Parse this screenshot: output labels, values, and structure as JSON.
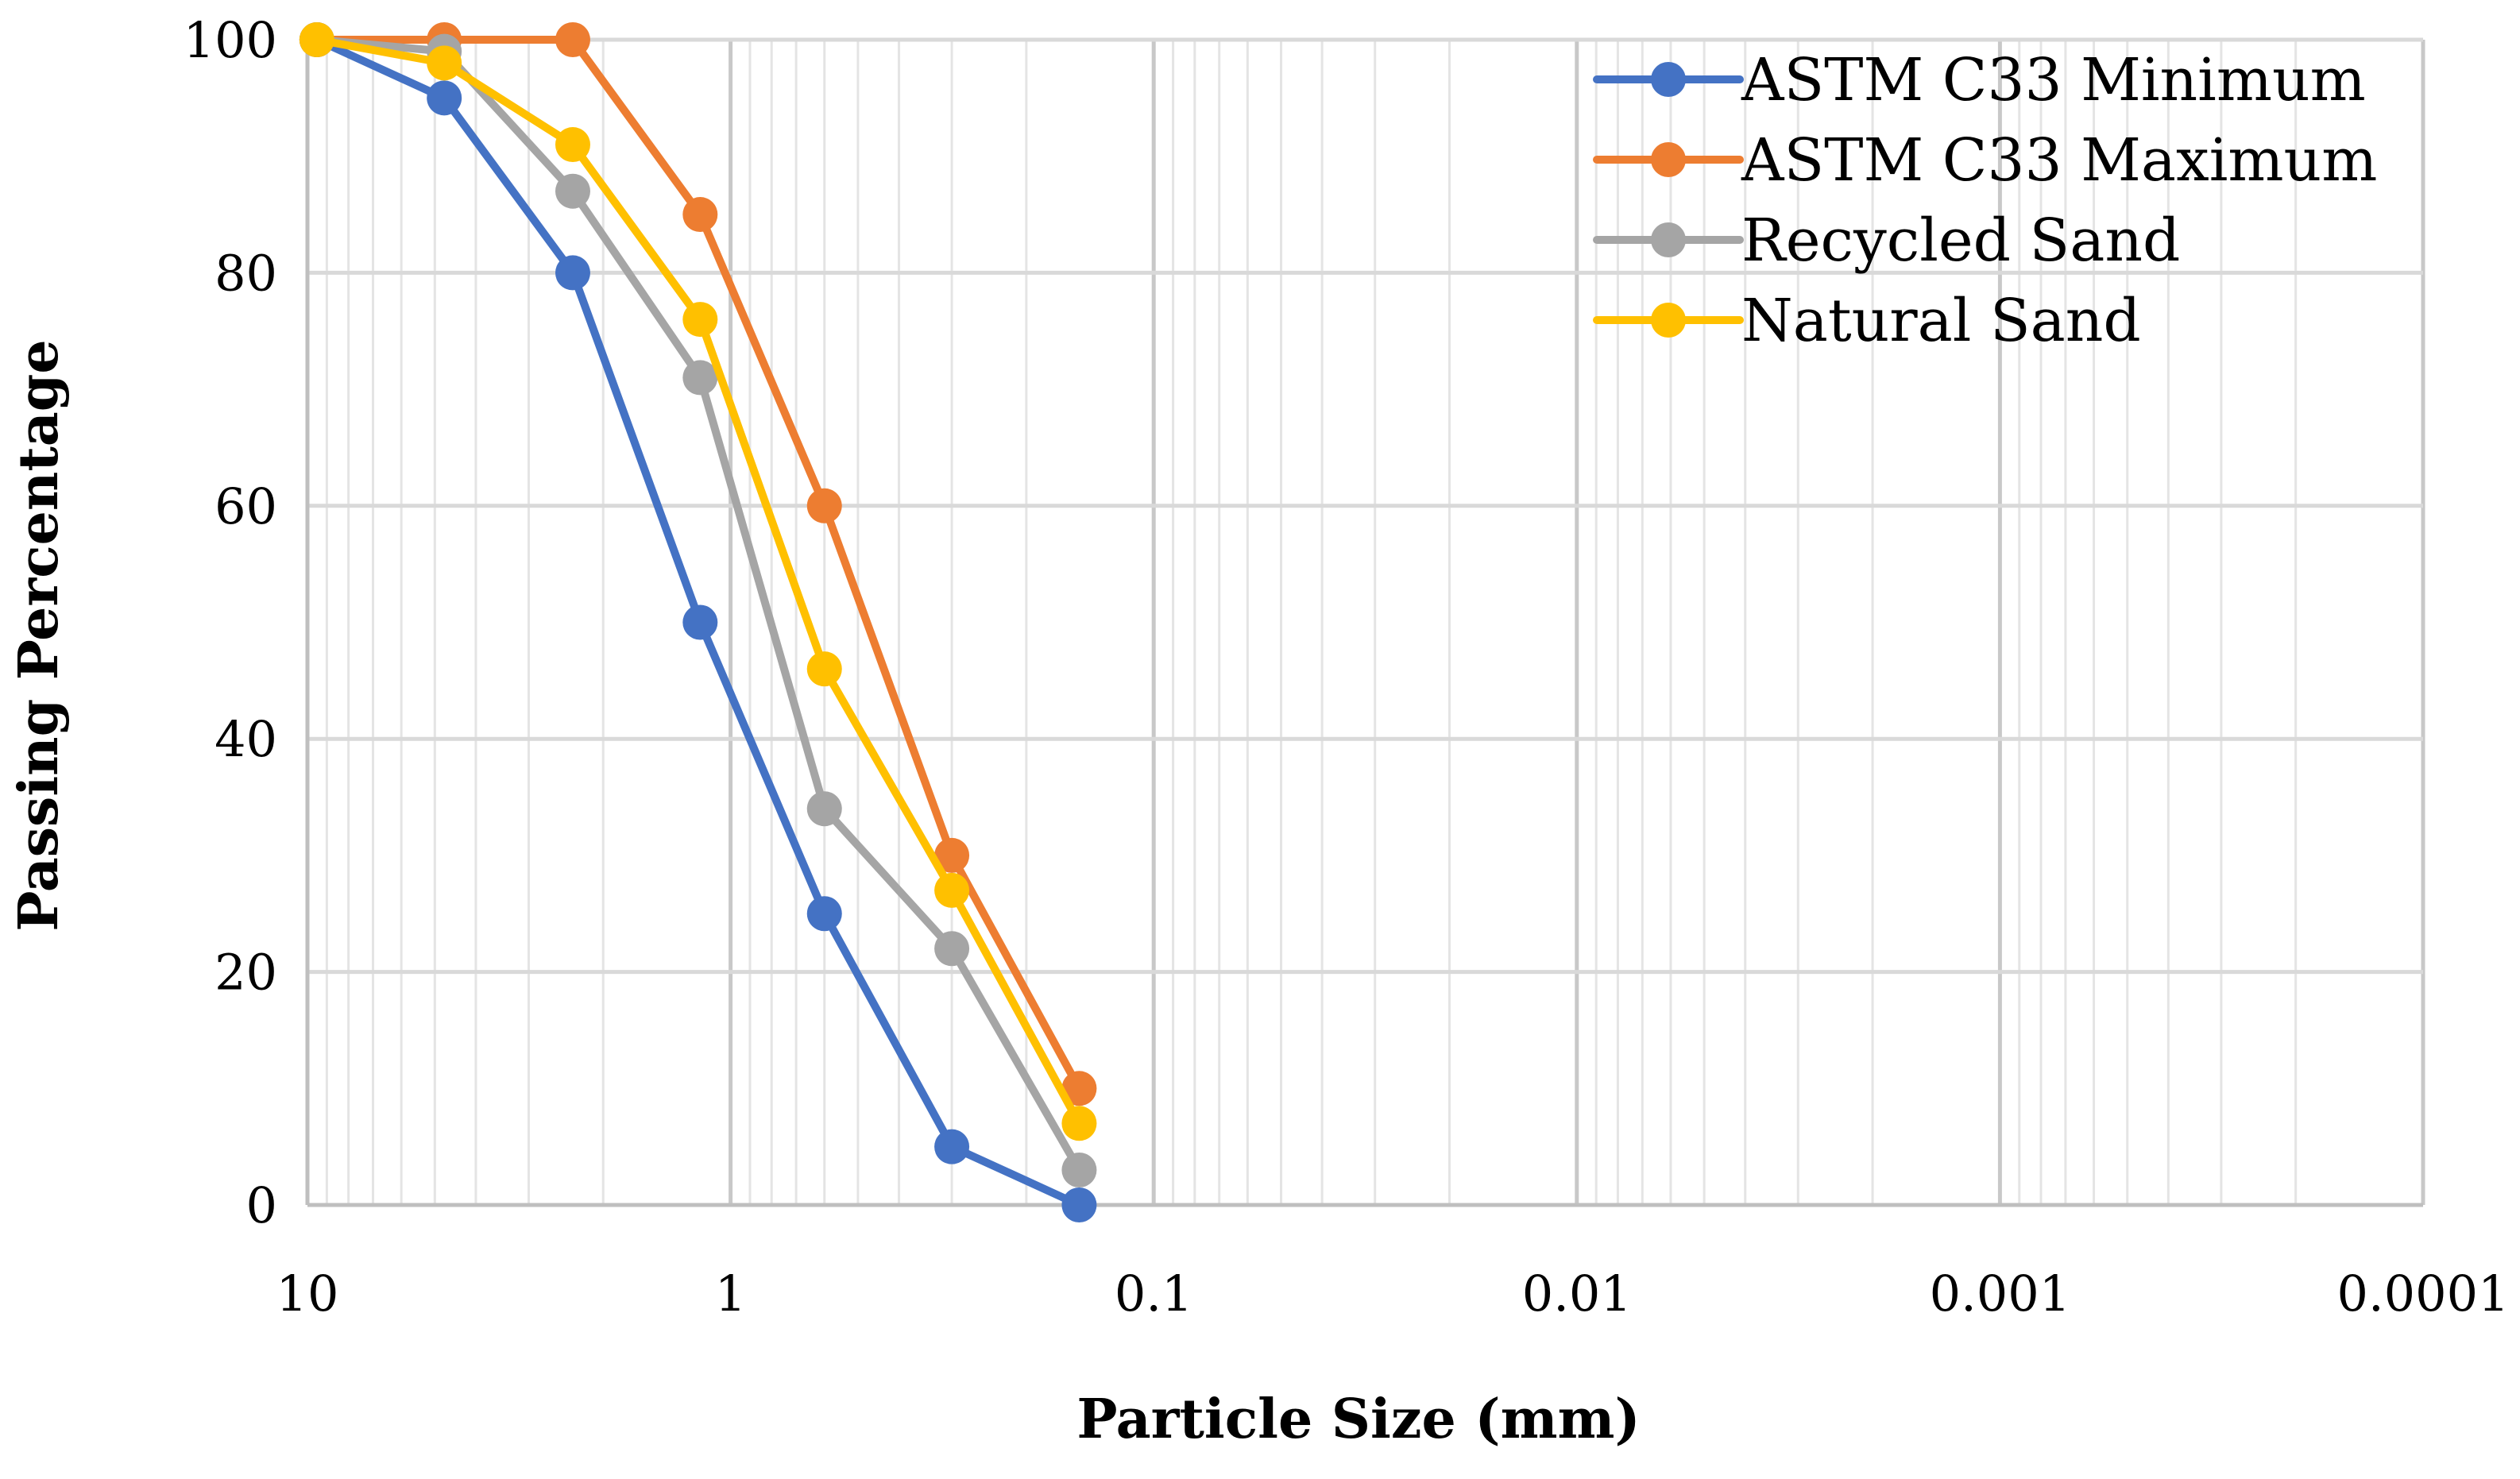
{
  "chart_data": {
    "type": "line",
    "title": "",
    "xlabel": "Particle Size (mm)",
    "ylabel": "Passing Percentage",
    "x_scale": "log",
    "x_reversed": true,
    "xlim": [
      10,
      0.0001
    ],
    "ylim": [
      0,
      100
    ],
    "grid": true,
    "legend_position": "top-right",
    "x_ticks": [
      {
        "value": 10,
        "label": "10"
      },
      {
        "value": 1,
        "label": "1"
      },
      {
        "value": 0.1,
        "label": "0.1"
      },
      {
        "value": 0.01,
        "label": "0.01"
      },
      {
        "value": 0.001,
        "label": "0.001"
      },
      {
        "value": 0.0001,
        "label": "0.0001"
      }
    ],
    "y_ticks": [
      {
        "value": 0,
        "label": "0"
      },
      {
        "value": 20,
        "label": "20"
      },
      {
        "value": 40,
        "label": "40"
      },
      {
        "value": 60,
        "label": "60"
      },
      {
        "value": 80,
        "label": "80"
      },
      {
        "value": 100,
        "label": "100"
      }
    ],
    "x": [
      9.5,
      4.75,
      2.36,
      1.18,
      0.6,
      0.3,
      0.15
    ],
    "series": [
      {
        "name": "ASTM C33 Minimum",
        "color": "#4472C4",
        "values": [
          100,
          95,
          80,
          50,
          25,
          5,
          0
        ]
      },
      {
        "name": "ASTM C33 Maximum",
        "color": "#ED7D31",
        "values": [
          100,
          100,
          100,
          85,
          60,
          30,
          10
        ]
      },
      {
        "name": "Recycled Sand",
        "color": "#A5A5A5",
        "values": [
          100,
          99,
          87,
          71,
          34,
          22,
          3
        ]
      },
      {
        "name": "Natural Sand",
        "color": "#FFC000",
        "values": [
          100,
          98,
          91,
          76,
          46,
          27,
          7
        ]
      }
    ]
  }
}
